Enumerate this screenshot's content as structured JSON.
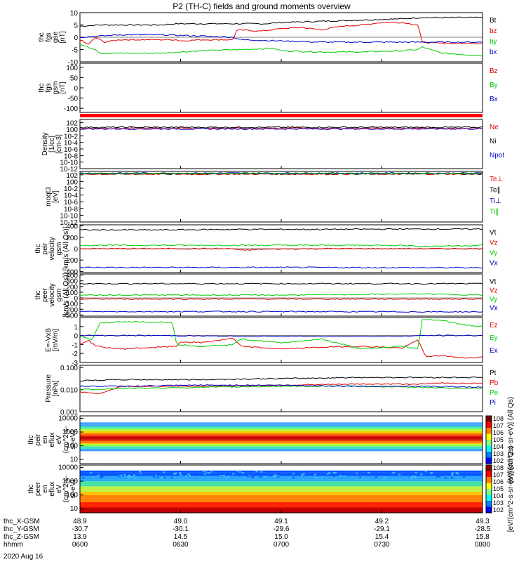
{
  "page": {
    "title": "P2 (TH-C) fields and ground moments overview",
    "date": "2020 Aug 16"
  },
  "time_axis": {
    "rows": [
      {
        "label": "thc_X-GSM",
        "values": [
          "48.9",
          "49.0",
          "49.1",
          "49.2",
          "49.3"
        ]
      },
      {
        "label": "thc_Y-GSM",
        "values": [
          "-30.7",
          "-30.1",
          "-29.6",
          "-29.1",
          "-28.5"
        ]
      },
      {
        "label": "thc_Z-GSM",
        "values": [
          "13.9",
          "14.5",
          "15.0",
          "15.4",
          "15.8"
        ]
      },
      {
        "label": "hhmm",
        "values": [
          "0600",
          "0630",
          "0700",
          "0730",
          "0800"
        ]
      }
    ]
  },
  "colors": {
    "black": "#000000",
    "red": "#e00000",
    "green": "#00cc00",
    "blue": "#0000cc"
  },
  "chart_data": [
    {
      "type": "line",
      "ylabel": [
        "thc",
        "fgs",
        "gse",
        "[nT]"
      ],
      "ylim": [
        -10,
        10
      ],
      "yticks": [
        10,
        5,
        0,
        -5,
        -10
      ],
      "yscale": "linear",
      "legend": [
        {
          "name": "Bt",
          "color": "#000000"
        },
        {
          "name": "bz",
          "color": "#e00000"
        },
        {
          "name": "by",
          "color": "#00cc00"
        },
        {
          "name": "bx",
          "color": "#0000cc"
        }
      ],
      "series": [
        {
          "name": "Bt",
          "color": "#000000",
          "x": [
            0,
            0.05,
            0.1,
            0.2,
            0.24,
            0.3,
            0.4,
            0.46,
            0.5,
            0.6,
            0.7,
            0.8,
            0.85,
            0.9,
            1.0
          ],
          "y": [
            4.5,
            5,
            5,
            5,
            5.5,
            5.5,
            5.5,
            5.5,
            6,
            6.5,
            7,
            7.5,
            8,
            8,
            8
          ]
        },
        {
          "name": "bz",
          "color": "#e00000",
          "x": [
            0,
            0.02,
            0.04,
            0.06,
            0.1,
            0.2,
            0.24,
            0.25,
            0.3,
            0.38,
            0.39,
            0.45,
            0.5,
            0.55,
            0.6,
            0.65,
            0.7,
            0.75,
            0.8,
            0.84,
            0.85,
            0.9,
            1.0
          ],
          "y": [
            -1,
            -3,
            0,
            -2,
            -1,
            -1,
            -1,
            -1.5,
            -1,
            -1,
            3,
            2.5,
            3.5,
            4,
            3,
            4.5,
            5,
            6,
            6,
            5,
            -2,
            -2.5,
            -2.5
          ]
        },
        {
          "name": "by",
          "color": "#00cc00",
          "x": [
            0,
            0.04,
            0.05,
            0.1,
            0.2,
            0.3,
            0.4,
            0.48,
            0.5,
            0.6,
            0.7,
            0.8,
            0.84,
            0.85,
            0.9,
            1.0
          ],
          "y": [
            -3,
            -5,
            -6.5,
            -6.5,
            -6.5,
            -5.5,
            -5,
            -4.5,
            -5.5,
            -6,
            -6,
            -5.5,
            -5,
            -4,
            -6.5,
            -7.5
          ]
        },
        {
          "name": "bx",
          "color": "#0000cc",
          "x": [
            0,
            0.05,
            0.1,
            0.2,
            0.3,
            0.38,
            0.4,
            0.5,
            0.6,
            0.7,
            0.8,
            0.9,
            1.0
          ],
          "y": [
            0,
            0.5,
            1,
            1,
            0.5,
            0,
            -1,
            -1.5,
            -2,
            -2,
            -2,
            -2,
            -2
          ]
        }
      ]
    },
    {
      "type": "line",
      "ylabel": [
        "thc",
        "fgs",
        "gsm",
        "[nT]"
      ],
      "ylim": [
        -120,
        120
      ],
      "yticks": [
        100,
        50,
        0,
        -50,
        -100
      ],
      "yscale": "linear",
      "legend": [
        {
          "name": "Bz",
          "color": "#e00000"
        },
        {
          "name": "By",
          "color": "#00cc00"
        },
        {
          "name": "Bx",
          "color": "#0000cc"
        }
      ],
      "series": []
    },
    {
      "type": "line",
      "ylabel": [
        "Density",
        "[1/cc]",
        "[cm-3]"
      ],
      "ylim": [
        -12,
        3
      ],
      "yticks_exp": [
        2,
        0,
        -2,
        -4,
        -6,
        -8,
        -10,
        -12
      ],
      "yscale": "log",
      "legend": [
        {
          "name": "Ne",
          "color": "#e00000"
        },
        {
          "name": "Ni",
          "color": "#000000"
        },
        {
          "name": "Npot",
          "color": "#0000cc"
        }
      ],
      "series": [
        {
          "name": "Ne",
          "color": "#e00000",
          "x": [
            0,
            1
          ],
          "y": [
            0.3,
            0.3
          ]
        },
        {
          "name": "Ni",
          "color": "#000000",
          "x": [
            0,
            1
          ],
          "y": [
            0.6,
            0.6
          ]
        },
        {
          "name": "Npot",
          "color": "#0000cc",
          "x": [
            0,
            1
          ],
          "y": [
            0.1,
            0.1
          ]
        }
      ]
    },
    {
      "type": "line",
      "ylabel": [
        "moqt3",
        "[eV]"
      ],
      "ylim": [
        -12,
        3
      ],
      "yticks_exp": [
        2,
        0,
        -2,
        -4,
        -6,
        -8,
        -10,
        -12
      ],
      "yscale": "log",
      "legend": [
        {
          "name": "Te⊥",
          "color": "#e00000"
        },
        {
          "name": "Te∥",
          "color": "#000000"
        },
        {
          "name": "Ti⊥",
          "color": "#0000cc"
        },
        {
          "name": "Ti∥",
          "color": "#00cc00"
        }
      ],
      "series": [
        {
          "name": "Te⊥",
          "color": "#e00000",
          "x": [
            0,
            1
          ],
          "y": [
            2.2,
            2.2
          ]
        },
        {
          "name": "Te∥",
          "color": "#000000",
          "x": [
            0,
            1
          ],
          "y": [
            2.3,
            2.3
          ]
        },
        {
          "name": "Ti⊥",
          "color": "#0000cc",
          "x": [
            0,
            1
          ],
          "y": [
            2.5,
            2.5
          ]
        },
        {
          "name": "Ti∥",
          "color": "#00cc00",
          "x": [
            0,
            1
          ],
          "y": [
            2.4,
            2.4
          ]
        }
      ]
    },
    {
      "type": "line",
      "ylabel": [
        "thc",
        "peir",
        "velocity",
        "gsm",
        "[km/s (All Qs)]"
      ],
      "ylim": [
        -420,
        420
      ],
      "yticks": [
        400,
        200,
        0,
        -200,
        -400
      ],
      "yscale": "linear",
      "legend": [
        {
          "name": "Vt",
          "color": "#000000"
        },
        {
          "name": "Vz",
          "color": "#e00000"
        },
        {
          "name": "Vy",
          "color": "#00cc00"
        },
        {
          "name": "Vx",
          "color": "#0000cc"
        }
      ],
      "series": [
        {
          "name": "Vt",
          "color": "#000000",
          "x": [
            0,
            0.2,
            0.4,
            0.6,
            0.8,
            1.0
          ],
          "y": [
            330,
            330,
            340,
            340,
            345,
            345
          ]
        },
        {
          "name": "Vz",
          "color": "#e00000",
          "x": [
            0,
            0.2,
            0.38,
            0.4,
            0.45,
            0.6,
            0.8,
            1.0
          ],
          "y": [
            0,
            0,
            0,
            -30,
            -10,
            0,
            0,
            0
          ]
        },
        {
          "name": "Vy",
          "color": "#00cc00",
          "x": [
            0,
            0.2,
            0.4,
            0.6,
            0.8,
            0.85,
            1.0
          ],
          "y": [
            60,
            60,
            60,
            60,
            60,
            40,
            60
          ]
        },
        {
          "name": "Vx",
          "color": "#0000cc",
          "x": [
            0,
            0.5,
            1.0
          ],
          "y": [
            -330,
            -330,
            -335
          ]
        }
      ]
    },
    {
      "type": "line",
      "ylabel": [
        "thc",
        "peer",
        "velocity",
        "gsm",
        "[km/s (All Qs)]"
      ],
      "ylim": [
        -320,
        420
      ],
      "yticks": [
        400,
        300,
        200,
        100,
        0,
        -100,
        -200,
        -300
      ],
      "yscale": "linear",
      "legend": [
        {
          "name": "Vt",
          "color": "#000000"
        },
        {
          "name": "Vz",
          "color": "#e00000"
        },
        {
          "name": "Vy",
          "color": "#00cc00"
        },
        {
          "name": "Vx",
          "color": "#0000cc"
        }
      ],
      "series": [
        {
          "name": "Vt",
          "color": "#000000",
          "x": [
            0,
            0.5,
            1.0
          ],
          "y": [
            250,
            250,
            250
          ]
        },
        {
          "name": "Vz",
          "color": "#e00000",
          "x": [
            0,
            0.5,
            1.0
          ],
          "y": [
            -20,
            -20,
            -20
          ]
        },
        {
          "name": "Vy",
          "color": "#00cc00",
          "x": [
            0,
            0.5,
            0.85,
            1.0
          ],
          "y": [
            50,
            50,
            70,
            50
          ]
        },
        {
          "name": "Vx",
          "color": "#0000cc",
          "x": [
            0,
            0.5,
            1.0
          ],
          "y": [
            -240,
            -240,
            -245
          ]
        }
      ]
    },
    {
      "type": "line",
      "ylabel": [
        "E=-VxB",
        "[mV/m]"
      ],
      "ylim": [
        -3,
        2
      ],
      "yticks": [
        1,
        0,
        -1,
        -2,
        -3
      ],
      "yscale": "linear",
      "legend": [
        {
          "name": "Ez",
          "color": "#e00000"
        },
        {
          "name": "Ey",
          "color": "#00cc00"
        },
        {
          "name": "Ex",
          "color": "#0000cc"
        }
      ],
      "series": [
        {
          "name": "Ez",
          "color": "#e00000",
          "x": [
            0,
            0.02,
            0.04,
            0.1,
            0.24,
            0.25,
            0.3,
            0.38,
            0.4,
            0.5,
            0.6,
            0.7,
            0.8,
            0.84,
            0.86,
            0.9,
            0.95,
            1.0
          ],
          "y": [
            -1,
            -0.5,
            -1.2,
            -1.5,
            -1.2,
            -0.7,
            -0.8,
            -0.3,
            -1.2,
            -1.5,
            -1.3,
            -1.2,
            -1.4,
            -0.5,
            -2.4,
            -2.2,
            -2.5,
            -2.4
          ]
        },
        {
          "name": "Ey",
          "color": "#00cc00",
          "x": [
            0,
            0.03,
            0.05,
            0.1,
            0.23,
            0.24,
            0.3,
            0.38,
            0.4,
            0.5,
            0.6,
            0.7,
            0.8,
            0.84,
            0.85,
            0.9,
            0.95,
            1.0
          ],
          "y": [
            0,
            -0.5,
            1.4,
            1.5,
            1.5,
            -1,
            -1.2,
            -1,
            -0.4,
            -0.8,
            -0.4,
            -1.5,
            -1.2,
            -1.5,
            1.8,
            1.7,
            1.2,
            1.0
          ]
        },
        {
          "name": "Ex",
          "color": "#0000cc",
          "x": [
            0,
            0.2,
            0.4,
            0.6,
            0.8,
            0.85,
            1.0
          ],
          "y": [
            0,
            0,
            -0.1,
            -0.1,
            -0.1,
            0,
            0
          ]
        }
      ]
    },
    {
      "type": "line",
      "ylabel": [
        "Pressure",
        "[nPa]"
      ],
      "ylim": [
        -3,
        -0.9
      ],
      "ytick_labels": [
        {
          "v": -1,
          "t": "0.100"
        },
        {
          "v": -2,
          "t": "0.010"
        },
        {
          "v": -3,
          "t": "0.001"
        }
      ],
      "yscale": "log",
      "legend": [
        {
          "name": "Pt",
          "color": "#000000"
        },
        {
          "name": "Pb",
          "color": "#e00000"
        },
        {
          "name": "Pe",
          "color": "#00cc00"
        },
        {
          "name": "Pi",
          "color": "#0000cc"
        }
      ],
      "series": [
        {
          "name": "Pt",
          "color": "#000000",
          "x": [
            0,
            0.1,
            0.3,
            0.5,
            0.7,
            0.85,
            1.0
          ],
          "y": [
            -1.6,
            -1.55,
            -1.55,
            -1.5,
            -1.45,
            -1.45,
            -1.45
          ]
        },
        {
          "name": "Pb",
          "color": "#e00000",
          "x": [
            0,
            0.05,
            0.1,
            0.3,
            0.5,
            0.7,
            0.85,
            0.9,
            1.0
          ],
          "y": [
            -2.1,
            -2.2,
            -1.85,
            -1.85,
            -1.8,
            -1.75,
            -1.75,
            -1.7,
            -1.72
          ]
        },
        {
          "name": "Pe",
          "color": "#00cc00",
          "x": [
            0,
            0.1,
            0.3,
            0.5,
            0.7,
            0.85,
            1.0
          ],
          "y": [
            -2,
            -1.95,
            -1.9,
            -1.85,
            -1.85,
            -1.9,
            -1.95
          ]
        },
        {
          "name": "Pi",
          "color": "#0000cc",
          "x": [
            0,
            0.1,
            0.3,
            0.5,
            0.7,
            0.85,
            1.0
          ],
          "y": [
            -1.85,
            -1.85,
            -1.8,
            -1.8,
            -1.85,
            -1.85,
            -1.9
          ]
        }
      ]
    },
    {
      "type": "heatmap",
      "ylabel": [
        "thc",
        "peir",
        "en",
        "eflux",
        "eV",
        "(cm^2-s-",
        "sr-eV)"
      ],
      "yscale": "log",
      "ylim": [
        5,
        15000
      ],
      "ytick_labels": [
        {
          "v": 10000,
          "t": "10000"
        },
        {
          "v": 1000,
          "t": "1000"
        },
        {
          "v": 100,
          "t": "100"
        },
        {
          "v": 10,
          "t": "10"
        }
      ],
      "colorbar": {
        "label": "[eV/(cm^2-s-sr-eV)] (All Qs)",
        "ticks_exp": [
          8,
          7,
          6,
          5,
          4,
          3,
          2
        ]
      }
    },
    {
      "type": "heatmap",
      "ylabel": [
        "thc",
        "peer",
        "en",
        "eflux",
        "eV",
        "(cm^2-s-",
        "sr-eV)"
      ],
      "yscale": "log",
      "ylim": [
        5,
        15000
      ],
      "ytick_labels": [
        {
          "v": 10000,
          "t": "10000"
        },
        {
          "v": 1000,
          "t": "1000"
        },
        {
          "v": 100,
          "t": "100"
        },
        {
          "v": 10,
          "t": "10"
        }
      ],
      "colorbar": {
        "label": "[eV/(cm^2-s-sr-eV)] (All Qs)",
        "ticks_exp": [
          8,
          7,
          6,
          5,
          4,
          3,
          2
        ]
      }
    }
  ]
}
